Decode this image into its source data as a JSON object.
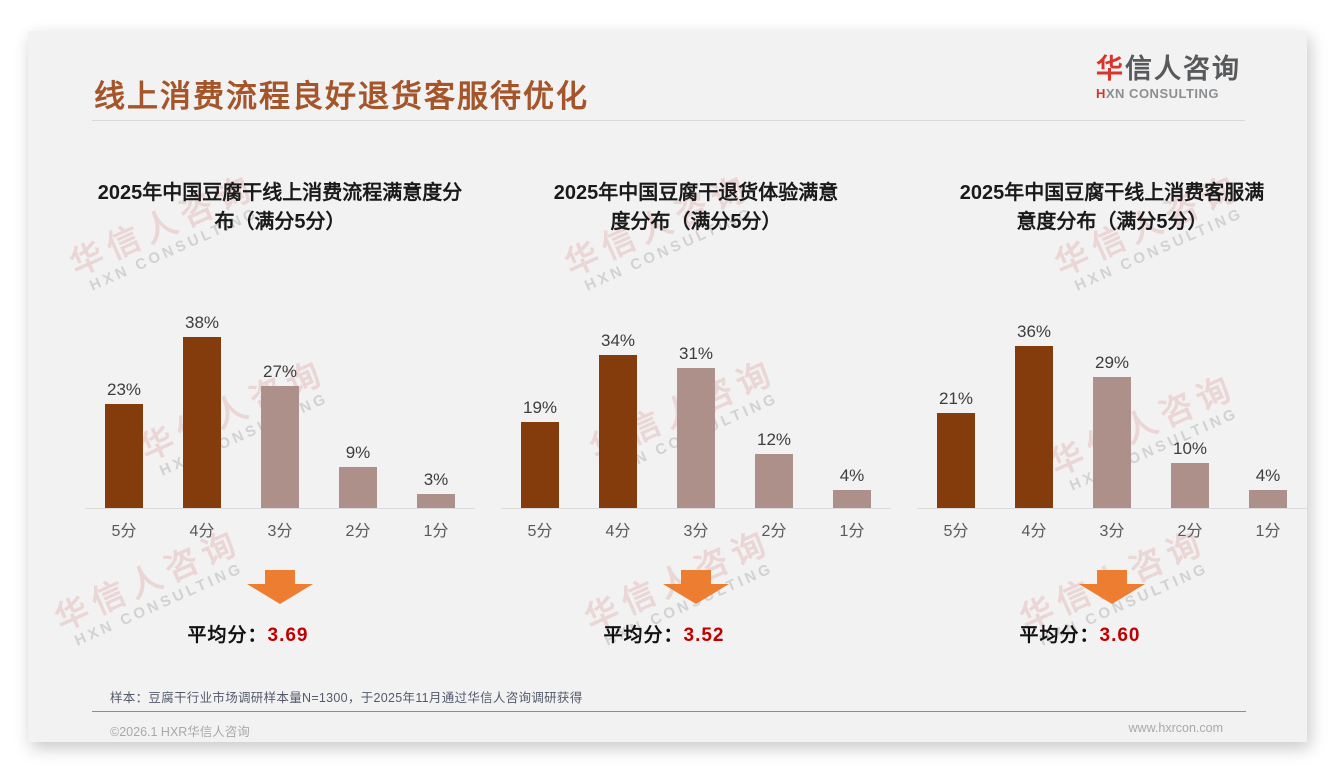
{
  "slide": {
    "title": "线上消费流程良好退货客服待优化",
    "logo": {
      "zh_first": "华",
      "zh_rest": "信人咨询",
      "en_first": "H",
      "en_rest": "XN CONSULTING"
    },
    "watermark": {
      "line1": "华信人咨询",
      "line2": "HXN CONSULTING"
    },
    "sample_note": "样本：豆腐干行业市场调研样本量N=1300，于2025年11月通过华信人咨询调研获得",
    "footer": {
      "left": "©2026.1 HXR华信人咨询",
      "right": "www.hxrcon.com"
    }
  },
  "colors": {
    "title_brown": "#A5552A",
    "bar_dark": "#843C0C",
    "bar_light": "#AC9089",
    "arrow_orange": "#ED7D31",
    "average_red": "#C00000",
    "brand_red": "#D8342A",
    "slide_bg": "#F2F2F3"
  },
  "chart_data": [
    {
      "type": "bar",
      "title": "2025年中国豆腐干线上消费流程满意度分布（满分5分）",
      "title_line1": "2025年中国豆腐干线上消费流程满意度分",
      "title_line2": "布（满分5分）",
      "categories": [
        "5分",
        "4分",
        "3分",
        "2分",
        "1分"
      ],
      "values": [
        23,
        38,
        27,
        9,
        3
      ],
      "value_labels": [
        "23%",
        "38%",
        "27%",
        "9%",
        "3%"
      ],
      "average_label": "平均分：",
      "average_value": "3.69",
      "ylim": [
        0,
        40
      ],
      "grid": false,
      "data_labels": true,
      "legend": "none"
    },
    {
      "type": "bar",
      "title": "2025年中国豆腐干退货体验满意度分布（满分5分）",
      "title_line1": "2025年中国豆腐干退货体验满意",
      "title_line2": "度分布（满分5分）",
      "categories": [
        "5分",
        "4分",
        "3分",
        "2分",
        "1分"
      ],
      "values": [
        19,
        34,
        31,
        12,
        4
      ],
      "value_labels": [
        "19%",
        "34%",
        "31%",
        "12%",
        "4%"
      ],
      "average_label": "平均分：",
      "average_value": "3.52",
      "ylim": [
        0,
        40
      ],
      "grid": false,
      "data_labels": true,
      "legend": "none"
    },
    {
      "type": "bar",
      "title": "2025年中国豆腐干线上消费客服满意度分布（满分5分）",
      "title_line1": "2025年中国豆腐干线上消费客服满",
      "title_line2": "意度分布（满分5分）",
      "categories": [
        "5分",
        "4分",
        "3分",
        "2分",
        "1分"
      ],
      "values": [
        21,
        36,
        29,
        10,
        4
      ],
      "value_labels": [
        "21%",
        "36%",
        "29%",
        "10%",
        "4%"
      ],
      "average_label": "平均分：",
      "average_value": "3.60",
      "ylim": [
        0,
        40
      ],
      "grid": false,
      "data_labels": true,
      "legend": "none"
    }
  ]
}
